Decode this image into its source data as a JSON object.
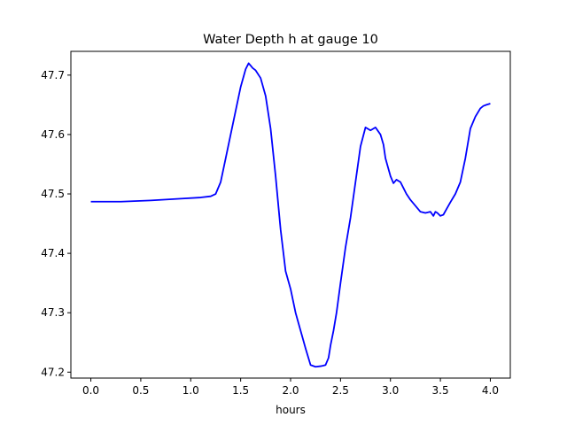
{
  "chart_data": {
    "type": "line",
    "title": "Water Depth h at gauge 10",
    "xlabel": "hours",
    "ylabel": "",
    "xlim": [
      -0.2,
      4.2
    ],
    "ylim": [
      47.19,
      47.74
    ],
    "xticks": [
      0.0,
      0.5,
      1.0,
      1.5,
      2.0,
      2.5,
      3.0,
      3.5,
      4.0
    ],
    "xtick_labels": [
      "0.0",
      "0.5",
      "1.0",
      "1.5",
      "2.0",
      "2.5",
      "3.0",
      "3.5",
      "4.0"
    ],
    "yticks": [
      47.2,
      47.3,
      47.4,
      47.5,
      47.6,
      47.7
    ],
    "ytick_labels": [
      "47.2",
      "47.3",
      "47.4",
      "47.5",
      "47.6",
      "47.7"
    ],
    "grid": false,
    "series": [
      {
        "color": "#0000ff",
        "x": [
          0.0,
          0.3,
          0.6,
          0.9,
          1.1,
          1.2,
          1.25,
          1.3,
          1.35,
          1.4,
          1.45,
          1.5,
          1.55,
          1.58,
          1.6,
          1.62,
          1.65,
          1.7,
          1.75,
          1.8,
          1.85,
          1.9,
          1.95,
          2.0,
          2.05,
          2.1,
          2.15,
          2.2,
          2.25,
          2.3,
          2.33,
          2.35,
          2.38,
          2.4,
          2.43,
          2.46,
          2.5,
          2.55,
          2.6,
          2.65,
          2.7,
          2.75,
          2.8,
          2.85,
          2.9,
          2.93,
          2.95,
          3.0,
          3.03,
          3.06,
          3.1,
          3.13,
          3.16,
          3.2,
          3.25,
          3.3,
          3.35,
          3.4,
          3.43,
          3.45,
          3.47,
          3.5,
          3.53,
          3.56,
          3.6,
          3.65,
          3.7,
          3.75,
          3.8,
          3.85,
          3.9,
          3.93,
          3.96,
          4.0
        ],
        "y": [
          47.487,
          47.487,
          47.489,
          47.492,
          47.494,
          47.496,
          47.5,
          47.52,
          47.56,
          47.6,
          47.64,
          47.68,
          47.71,
          47.72,
          47.716,
          47.712,
          47.708,
          47.695,
          47.665,
          47.61,
          47.53,
          47.44,
          47.37,
          47.34,
          47.3,
          47.27,
          47.24,
          47.212,
          47.209,
          47.21,
          47.211,
          47.212,
          47.224,
          47.245,
          47.27,
          47.3,
          47.35,
          47.41,
          47.46,
          47.52,
          47.58,
          47.612,
          47.607,
          47.612,
          47.6,
          47.583,
          47.56,
          47.53,
          47.518,
          47.524,
          47.52,
          47.51,
          47.5,
          47.49,
          47.48,
          47.47,
          47.468,
          47.47,
          47.463,
          47.47,
          47.468,
          47.463,
          47.465,
          47.474,
          47.486,
          47.5,
          47.52,
          47.56,
          47.61,
          47.63,
          47.644,
          47.648,
          47.65,
          47.652
        ]
      }
    ]
  }
}
